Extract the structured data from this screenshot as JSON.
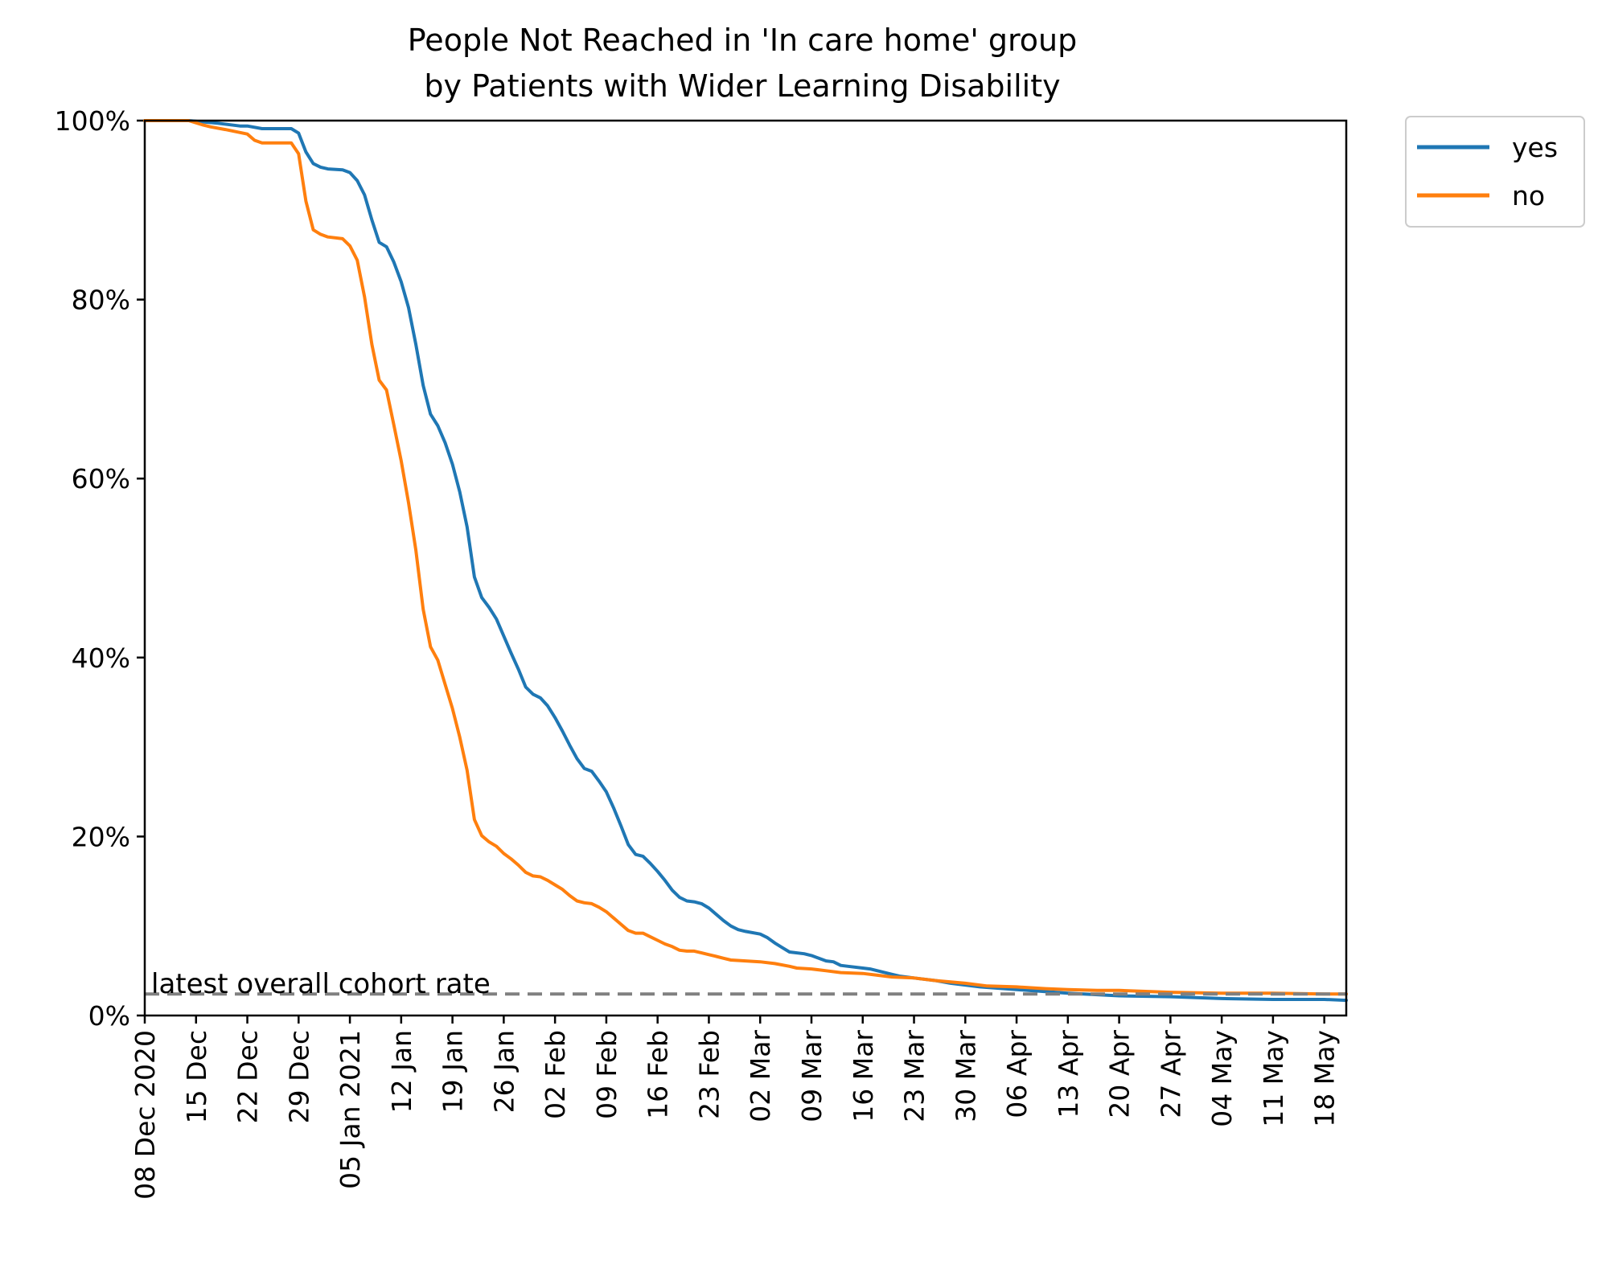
{
  "chart_data": {
    "type": "line",
    "title": [
      "People Not Reached in 'In care home' group",
      "by Patients with Wider Learning Disability"
    ],
    "xlabel": "",
    "ylabel": "",
    "x_range": [
      "2020-12-08",
      "2021-05-21"
    ],
    "ylim": [
      0,
      100
    ],
    "y_ticks": [
      0,
      20,
      40,
      60,
      80,
      100
    ],
    "y_tick_labels": [
      "0%",
      "20%",
      "40%",
      "60%",
      "80%",
      "100%"
    ],
    "x_ticks": [
      "2020-12-08",
      "2020-12-15",
      "2020-12-22",
      "2020-12-29",
      "2021-01-05",
      "2021-01-12",
      "2021-01-19",
      "2021-01-26",
      "2021-02-02",
      "2021-02-09",
      "2021-02-16",
      "2021-02-23",
      "2021-03-02",
      "2021-03-09",
      "2021-03-16",
      "2021-03-23",
      "2021-03-30",
      "2021-04-06",
      "2021-04-13",
      "2021-04-20",
      "2021-04-27",
      "2021-05-04",
      "2021-05-11",
      "2021-05-18"
    ],
    "x_tick_labels": [
      "08 Dec 2020",
      "15 Dec",
      "22 Dec",
      "29 Dec",
      "05 Jan 2021",
      "12 Jan",
      "19 Jan",
      "26 Jan",
      "02 Feb",
      "09 Feb",
      "16 Feb",
      "23 Feb",
      "02 Mar",
      "09 Mar",
      "16 Mar",
      "23 Mar",
      "30 Mar",
      "06 Apr",
      "13 Apr",
      "20 Apr",
      "27 Apr",
      "04 May",
      "11 May",
      "18 May"
    ],
    "legend": {
      "placement": "outside-top-right"
    },
    "grid": false,
    "series": [
      {
        "name": "yes",
        "color": "#1f77b4",
        "points": [
          [
            "2020-12-08",
            100
          ],
          [
            "2020-12-14",
            100
          ],
          [
            "2020-12-18",
            99.7
          ],
          [
            "2020-12-21",
            99.4
          ],
          [
            "2020-12-22",
            99.4
          ],
          [
            "2020-12-24",
            99.1
          ],
          [
            "2020-12-28",
            99.1
          ],
          [
            "2020-12-29",
            98.6
          ],
          [
            "2020-12-30",
            96.5
          ],
          [
            "2020-12-31",
            95.2
          ],
          [
            "2021-01-01",
            94.8
          ],
          [
            "2021-01-02",
            94.6
          ],
          [
            "2021-01-04",
            94.5
          ],
          [
            "2021-01-05",
            94.2
          ],
          [
            "2021-01-06",
            93.3
          ],
          [
            "2021-01-07",
            91.7
          ],
          [
            "2021-01-08",
            88.9
          ],
          [
            "2021-01-09",
            86.4
          ],
          [
            "2021-01-10",
            85.9
          ],
          [
            "2021-01-11",
            84.2
          ],
          [
            "2021-01-12",
            82
          ],
          [
            "2021-01-13",
            79.1
          ],
          [
            "2021-01-14",
            75
          ],
          [
            "2021-01-15",
            70.4
          ],
          [
            "2021-01-16",
            67.2
          ],
          [
            "2021-01-17",
            65.9
          ],
          [
            "2021-01-18",
            64
          ],
          [
            "2021-01-19",
            61.6
          ],
          [
            "2021-01-20",
            58.5
          ],
          [
            "2021-01-21",
            54.6
          ],
          [
            "2021-01-22",
            49
          ],
          [
            "2021-01-23",
            46.7
          ],
          [
            "2021-01-24",
            45.6
          ],
          [
            "2021-01-25",
            44.3
          ],
          [
            "2021-01-26",
            42.4
          ],
          [
            "2021-01-27",
            40.5
          ],
          [
            "2021-01-28",
            38.7
          ],
          [
            "2021-01-29",
            36.7
          ],
          [
            "2021-01-30",
            35.9
          ],
          [
            "2021-01-31",
            35.5
          ],
          [
            "2021-02-01",
            34.6
          ],
          [
            "2021-02-02",
            33.3
          ],
          [
            "2021-02-03",
            31.8
          ],
          [
            "2021-02-04",
            30.2
          ],
          [
            "2021-02-05",
            28.7
          ],
          [
            "2021-02-06",
            27.6
          ],
          [
            "2021-02-07",
            27.3
          ],
          [
            "2021-02-08",
            26.2
          ],
          [
            "2021-02-09",
            25
          ],
          [
            "2021-02-10",
            23.2
          ],
          [
            "2021-02-11",
            21.2
          ],
          [
            "2021-02-12",
            19.1
          ],
          [
            "2021-02-13",
            18
          ],
          [
            "2021-02-14",
            17.8
          ],
          [
            "2021-02-15",
            17
          ],
          [
            "2021-02-16",
            16.1
          ],
          [
            "2021-02-17",
            15.1
          ],
          [
            "2021-02-18",
            14
          ],
          [
            "2021-02-19",
            13.2
          ],
          [
            "2021-02-20",
            12.8
          ],
          [
            "2021-02-21",
            12.7
          ],
          [
            "2021-02-22",
            12.5
          ],
          [
            "2021-02-23",
            12
          ],
          [
            "2021-02-24",
            11.3
          ],
          [
            "2021-02-25",
            10.6
          ],
          [
            "2021-02-26",
            10
          ],
          [
            "2021-02-27",
            9.6
          ],
          [
            "2021-02-28",
            9.4
          ],
          [
            "2021-03-02",
            9.1
          ],
          [
            "2021-03-03",
            8.7
          ],
          [
            "2021-03-04",
            8.1
          ],
          [
            "2021-03-05",
            7.6
          ],
          [
            "2021-03-06",
            7.1
          ],
          [
            "2021-03-08",
            6.9
          ],
          [
            "2021-03-09",
            6.7
          ],
          [
            "2021-03-10",
            6.4
          ],
          [
            "2021-03-11",
            6.1
          ],
          [
            "2021-03-12",
            6
          ],
          [
            "2021-03-13",
            5.6
          ],
          [
            "2021-03-14",
            5.5
          ],
          [
            "2021-03-16",
            5.3
          ],
          [
            "2021-03-17",
            5.2
          ],
          [
            "2021-03-18",
            5
          ],
          [
            "2021-03-19",
            4.8
          ],
          [
            "2021-03-20",
            4.6
          ],
          [
            "2021-03-21",
            4.4
          ],
          [
            "2021-03-23",
            4.2
          ],
          [
            "2021-03-26",
            3.9
          ],
          [
            "2021-03-28",
            3.6
          ],
          [
            "2021-03-30",
            3.4
          ],
          [
            "2021-04-01",
            3.2
          ],
          [
            "2021-04-06",
            2.9
          ],
          [
            "2021-04-13",
            2.5
          ],
          [
            "2021-04-20",
            2.2
          ],
          [
            "2021-04-27",
            2.1
          ],
          [
            "2021-05-04",
            1.9
          ],
          [
            "2021-05-11",
            1.8
          ],
          [
            "2021-05-18",
            1.8
          ],
          [
            "2021-05-21",
            1.7
          ]
        ]
      },
      {
        "name": "no",
        "color": "#ff7f0e",
        "points": [
          [
            "2020-12-08",
            100
          ],
          [
            "2020-12-14",
            100
          ],
          [
            "2020-12-16",
            99.5
          ],
          [
            "2020-12-17",
            99.3
          ],
          [
            "2020-12-19",
            99
          ],
          [
            "2020-12-22",
            98.5
          ],
          [
            "2020-12-23",
            97.8
          ],
          [
            "2020-12-24",
            97.5
          ],
          [
            "2020-12-28",
            97.5
          ],
          [
            "2020-12-29",
            96.3
          ],
          [
            "2020-12-30",
            91
          ],
          [
            "2020-12-31",
            87.8
          ],
          [
            "2021-01-01",
            87.3
          ],
          [
            "2021-01-02",
            87
          ],
          [
            "2021-01-04",
            86.8
          ],
          [
            "2021-01-05",
            86
          ],
          [
            "2021-01-06",
            84.4
          ],
          [
            "2021-01-07",
            80.3
          ],
          [
            "2021-01-08",
            75
          ],
          [
            "2021-01-09",
            71
          ],
          [
            "2021-01-10",
            69.9
          ],
          [
            "2021-01-11",
            66
          ],
          [
            "2021-01-12",
            62
          ],
          [
            "2021-01-13",
            57.3
          ],
          [
            "2021-01-14",
            52
          ],
          [
            "2021-01-15",
            45.4
          ],
          [
            "2021-01-16",
            41.2
          ],
          [
            "2021-01-17",
            39.7
          ],
          [
            "2021-01-18",
            37
          ],
          [
            "2021-01-19",
            34.3
          ],
          [
            "2021-01-20",
            31.1
          ],
          [
            "2021-01-21",
            27.4
          ],
          [
            "2021-01-22",
            21.9
          ],
          [
            "2021-01-23",
            20.1
          ],
          [
            "2021-01-24",
            19.4
          ],
          [
            "2021-01-25",
            18.9
          ],
          [
            "2021-01-26",
            18.1
          ],
          [
            "2021-01-27",
            17.5
          ],
          [
            "2021-01-28",
            16.8
          ],
          [
            "2021-01-29",
            16
          ],
          [
            "2021-01-30",
            15.6
          ],
          [
            "2021-01-31",
            15.5
          ],
          [
            "2021-02-01",
            15.1
          ],
          [
            "2021-02-02",
            14.6
          ],
          [
            "2021-02-03",
            14.1
          ],
          [
            "2021-02-04",
            13.4
          ],
          [
            "2021-02-05",
            12.8
          ],
          [
            "2021-02-06",
            12.6
          ],
          [
            "2021-02-07",
            12.5
          ],
          [
            "2021-02-08",
            12.1
          ],
          [
            "2021-02-09",
            11.6
          ],
          [
            "2021-02-10",
            10.9
          ],
          [
            "2021-02-11",
            10.2
          ],
          [
            "2021-02-12",
            9.5
          ],
          [
            "2021-02-13",
            9.2
          ],
          [
            "2021-02-14",
            9.2
          ],
          [
            "2021-02-15",
            8.8
          ],
          [
            "2021-02-16",
            8.4
          ],
          [
            "2021-02-17",
            8
          ],
          [
            "2021-02-18",
            7.7
          ],
          [
            "2021-02-19",
            7.3
          ],
          [
            "2021-02-20",
            7.2
          ],
          [
            "2021-02-21",
            7.2
          ],
          [
            "2021-02-22",
            7
          ],
          [
            "2021-02-23",
            6.8
          ],
          [
            "2021-02-24",
            6.6
          ],
          [
            "2021-02-25",
            6.4
          ],
          [
            "2021-02-26",
            6.2
          ],
          [
            "2021-02-28",
            6.1
          ],
          [
            "2021-03-02",
            6
          ],
          [
            "2021-03-04",
            5.8
          ],
          [
            "2021-03-06",
            5.5
          ],
          [
            "2021-03-07",
            5.3
          ],
          [
            "2021-03-09",
            5.2
          ],
          [
            "2021-03-11",
            5
          ],
          [
            "2021-03-13",
            4.8
          ],
          [
            "2021-03-16",
            4.7
          ],
          [
            "2021-03-18",
            4.5
          ],
          [
            "2021-03-20",
            4.3
          ],
          [
            "2021-03-23",
            4.2
          ],
          [
            "2021-03-26",
            3.9
          ],
          [
            "2021-03-30",
            3.6
          ],
          [
            "2021-04-02",
            3.3
          ],
          [
            "2021-04-06",
            3.2
          ],
          [
            "2021-04-10",
            3
          ],
          [
            "2021-04-13",
            2.9
          ],
          [
            "2021-04-17",
            2.8
          ],
          [
            "2021-04-20",
            2.8
          ],
          [
            "2021-04-27",
            2.6
          ],
          [
            "2021-05-04",
            2.5
          ],
          [
            "2021-05-11",
            2.5
          ],
          [
            "2021-05-18",
            2.4
          ],
          [
            "2021-05-21",
            2.4
          ]
        ]
      }
    ],
    "reference_line": {
      "label": "latest overall cohort rate",
      "value": 2.4,
      "color": "#808080",
      "style": "dashed"
    }
  }
}
